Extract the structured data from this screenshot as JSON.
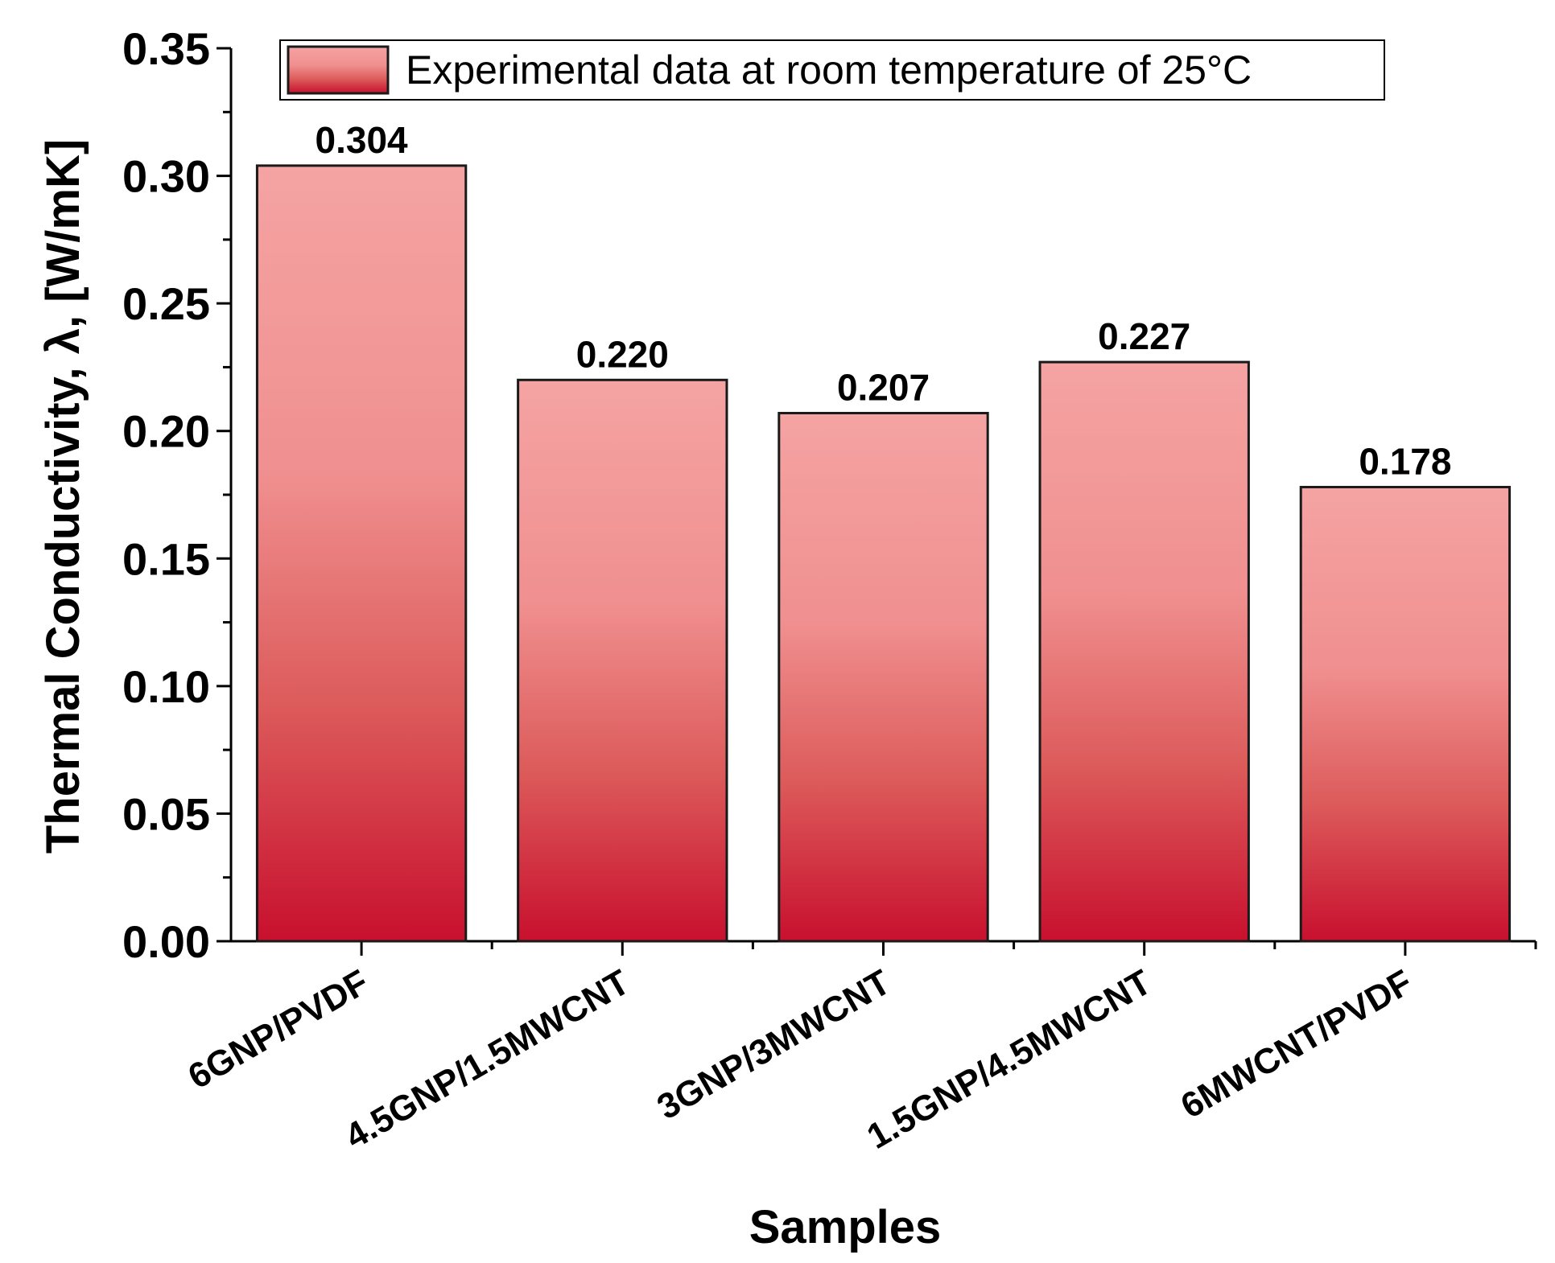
{
  "chart_data": {
    "type": "bar",
    "categories": [
      "6GNP/PVDF",
      "4.5GNP/1.5MWCNT",
      "3GNP/3MWCNT",
      "1.5GNP/4.5MWCNT",
      "6MWCNT/PVDF"
    ],
    "values": [
      0.304,
      0.22,
      0.207,
      0.227,
      0.178
    ],
    "data_labels": [
      "0.304",
      "0.220",
      "0.207",
      "0.227",
      "0.178"
    ],
    "xlabel": "Samples",
    "ylabel": "Thermal Conductivity, λ, [W/mK]",
    "ylim": [
      0,
      0.35
    ],
    "yticks": [
      0.0,
      0.05,
      0.1,
      0.15,
      0.2,
      0.25,
      0.3,
      0.35
    ],
    "ytick_labels": [
      "0.00",
      "0.05",
      "0.10",
      "0.15",
      "0.20",
      "0.25",
      "0.30",
      "0.35"
    ],
    "legend": {
      "label": "Experimental data at room temperature of 25°C",
      "placement": "top"
    },
    "grid": false,
    "colors": {
      "bar_top": "#f5a3a3",
      "bar_bottom": "#c8102e",
      "bar_border": "#1a1a1a"
    }
  }
}
